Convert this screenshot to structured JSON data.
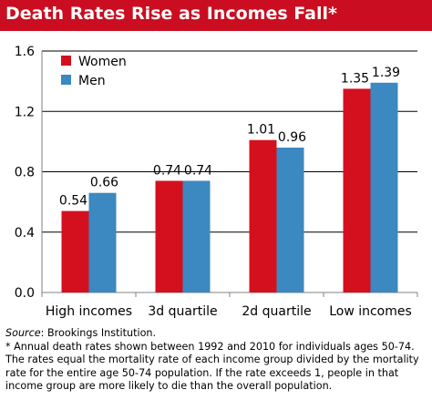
{
  "title": "Death Rates Rise as Incomes Fall*",
  "colors": {
    "title_bar": "#ca0d20",
    "women": "#d4101f",
    "men": "#3c88c0",
    "axis": "#808080",
    "grid": "#000000"
  },
  "source": {
    "label": "Source",
    "text": ": Brookings Institution."
  },
  "footnote": "* Annual death rates shown between 1992 and 2010 for individuals ages 50-74. The rates equal the mortality rate of each income group divided by the mortality rate for the entire age 50-74 population.  If the rate exceeds 1, people in that income group are more likely to die than the overall population.",
  "chart_data": {
    "type": "bar",
    "categories": [
      "High incomes",
      "3d quartile",
      "2d quartile",
      "Low incomes"
    ],
    "series": [
      {
        "name": "Women",
        "values": [
          0.54,
          0.74,
          1.01,
          1.35
        ],
        "labels": [
          "0.54",
          "0.74",
          "1.01",
          "1.35"
        ]
      },
      {
        "name": "Men",
        "values": [
          0.66,
          0.74,
          0.96,
          1.39
        ],
        "labels": [
          "0.66",
          "0.74",
          "0.96",
          "1.39"
        ]
      }
    ],
    "ylim": [
      0,
      1.6
    ],
    "yticks": [
      "0.0",
      "0.4",
      "0.8",
      "1.2",
      "1.6"
    ],
    "ytick_values": [
      0,
      0.4,
      0.8,
      1.2,
      1.6
    ],
    "grid": true,
    "legend_position": "top-left"
  }
}
